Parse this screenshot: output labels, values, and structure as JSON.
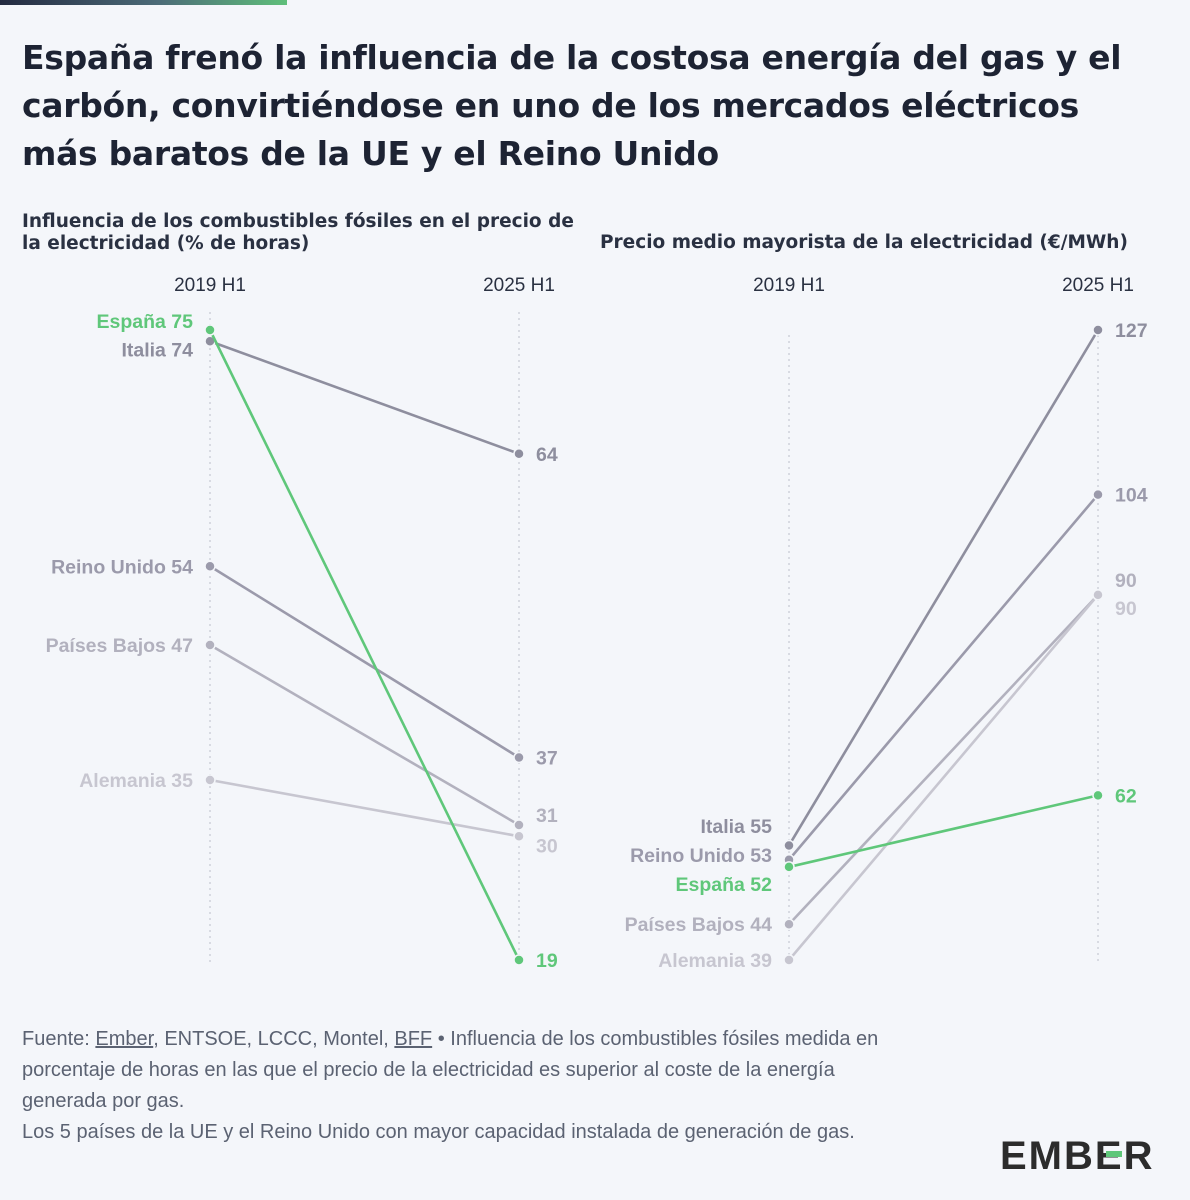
{
  "header": {
    "title": "España frenó la influencia de la costosa energía del gas y el carbón, convirtiéndose en uno de los mercados eléctricos más baratos de la UE y el Reino Unido"
  },
  "chart_data": [
    {
      "type": "line",
      "subtype": "slope",
      "title": "Influencia de los combustibles fósiles en el precio de la electricidad (% de horas)",
      "x": [
        "2019 H1",
        "2025 H1"
      ],
      "series": [
        {
          "name": "España",
          "values": [
            75,
            19
          ],
          "color": "#5fc77a",
          "start_label": "España 75",
          "end_label": "19"
        },
        {
          "name": "Italia",
          "values": [
            74,
            64
          ],
          "color": "#8e8e9e",
          "start_label": "Italia 74",
          "end_label": "64"
        },
        {
          "name": "Reino Unido",
          "values": [
            54,
            37
          ],
          "color": "#9b9aab",
          "start_label": "Reino Unido 54",
          "end_label": "37"
        },
        {
          "name": "Países Bajos",
          "values": [
            47,
            31
          ],
          "color": "#b2b1be",
          "start_label": "Países Bajos 47",
          "end_label": "31"
        },
        {
          "name": "Alemania",
          "values": [
            35,
            30
          ],
          "color": "#c7c6d0",
          "start_label": "Alemania 35",
          "end_label": "30"
        }
      ],
      "ylim": [
        19,
        75
      ],
      "grid": false,
      "legend": "none"
    },
    {
      "type": "line",
      "subtype": "slope",
      "title": "Precio medio mayorista de la electricidad (€/MWh)",
      "x": [
        "2019 H1",
        "2025 H1"
      ],
      "series": [
        {
          "name": "Italia",
          "values": [
            55,
            127
          ],
          "color": "#8e8e9e",
          "start_label": "Italia 55",
          "end_label": "127"
        },
        {
          "name": "Reino Unido",
          "values": [
            53,
            104
          ],
          "color": "#9b9aab",
          "start_label": "Reino Unido 53",
          "end_label": "104"
        },
        {
          "name": "España",
          "values": [
            52,
            62
          ],
          "color": "#5fc77a",
          "start_label": "España 52",
          "end_label": "62"
        },
        {
          "name": "Países Bajos",
          "values": [
            44,
            90
          ],
          "color": "#b2b1be",
          "start_label": "Países Bajos 44",
          "end_label": "90"
        },
        {
          "name": "Alemania",
          "values": [
            39,
            90
          ],
          "color": "#c7c6d0",
          "start_label": "Alemania 39",
          "end_label": "90"
        }
      ],
      "ylim": [
        39,
        127
      ],
      "grid": false,
      "legend": "none"
    }
  ],
  "footer": {
    "source_prefix": "Fuente: ",
    "link_ember": "Ember",
    "sources_mid": ", ENTSOE, LCCC, Montel, ",
    "link_bff": "BFF",
    "note1": " • Influencia de los combustibles fósiles medida en porcentaje de horas en las que el precio de la electricidad es superior al coste de la energía generada por gas.",
    "note2": "Los 5 países de la UE y el Reino Unido con mayor capacidad instalada de generación de gas."
  },
  "brand": {
    "logo": "EMBER",
    "color": "#2c2c2c",
    "accent": "#5fc77a"
  }
}
